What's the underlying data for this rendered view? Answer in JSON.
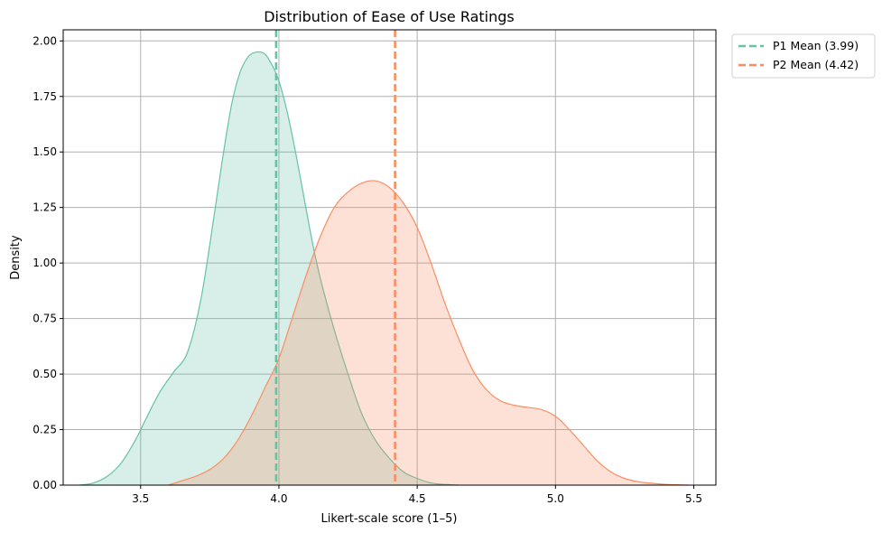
{
  "chart_data": {
    "type": "area",
    "title": "Distribution of Ease of Use Ratings",
    "xlabel": "Likert-scale score (1–5)",
    "ylabel": "Density",
    "xlim": [
      3.22,
      5.58
    ],
    "ylim": [
      0,
      2.05
    ],
    "x_ticks": [
      3.5,
      4.0,
      4.5,
      5.0,
      5.5
    ],
    "x_tick_labels": [
      "3.5",
      "4.0",
      "4.5",
      "5.0",
      "5.5"
    ],
    "y_ticks": [
      0,
      0.25,
      0.5,
      0.75,
      1.0,
      1.25,
      1.5,
      1.75,
      2.0
    ],
    "y_tick_labels": [
      "0.00",
      "0.25",
      "0.50",
      "0.75",
      "1.00",
      "1.25",
      "1.50",
      "1.75",
      "2.00"
    ],
    "grid": true,
    "legend_position": "outside-top-right",
    "series": [
      {
        "name": "P1",
        "color": "#66c2a5",
        "x": [
          3.28,
          3.33,
          3.38,
          3.43,
          3.48,
          3.52,
          3.57,
          3.62,
          3.67,
          3.72,
          3.77,
          3.8,
          3.83,
          3.86,
          3.89,
          3.92,
          3.95,
          3.98,
          4.0,
          4.03,
          4.06,
          4.09,
          4.12,
          4.15,
          4.2,
          4.25,
          4.3,
          4.35,
          4.4,
          4.45,
          4.5,
          4.55,
          4.6,
          4.65
        ],
        "y": [
          0.0,
          0.01,
          0.04,
          0.1,
          0.2,
          0.3,
          0.42,
          0.51,
          0.6,
          0.85,
          1.25,
          1.5,
          1.72,
          1.86,
          1.93,
          1.95,
          1.94,
          1.88,
          1.82,
          1.68,
          1.5,
          1.3,
          1.1,
          0.93,
          0.7,
          0.5,
          0.32,
          0.2,
          0.12,
          0.06,
          0.03,
          0.01,
          0.003,
          0.0
        ]
      },
      {
        "name": "P2",
        "color": "#fc8d62",
        "x": [
          3.6,
          3.65,
          3.7,
          3.75,
          3.8,
          3.85,
          3.9,
          3.95,
          4.0,
          4.05,
          4.1,
          4.15,
          4.2,
          4.25,
          4.3,
          4.35,
          4.4,
          4.45,
          4.5,
          4.55,
          4.6,
          4.65,
          4.7,
          4.75,
          4.8,
          4.85,
          4.9,
          4.95,
          5.0,
          5.05,
          5.1,
          5.15,
          5.2,
          5.25,
          5.3,
          5.35,
          5.4,
          5.45,
          5.48
        ],
        "y": [
          0.0,
          0.02,
          0.04,
          0.07,
          0.12,
          0.2,
          0.31,
          0.44,
          0.57,
          0.76,
          0.95,
          1.12,
          1.25,
          1.32,
          1.36,
          1.37,
          1.34,
          1.27,
          1.16,
          1.0,
          0.82,
          0.66,
          0.52,
          0.43,
          0.38,
          0.36,
          0.35,
          0.34,
          0.31,
          0.25,
          0.18,
          0.11,
          0.06,
          0.03,
          0.015,
          0.008,
          0.003,
          0.001,
          0.0
        ]
      }
    ],
    "reference_lines": [
      {
        "label": "P1 Mean (3.99)",
        "x": 3.99,
        "color": "#66c2a5",
        "style": "dashed"
      },
      {
        "label": "P2 Mean (4.42)",
        "x": 4.42,
        "color": "#fc8d62",
        "style": "dashed"
      }
    ]
  }
}
